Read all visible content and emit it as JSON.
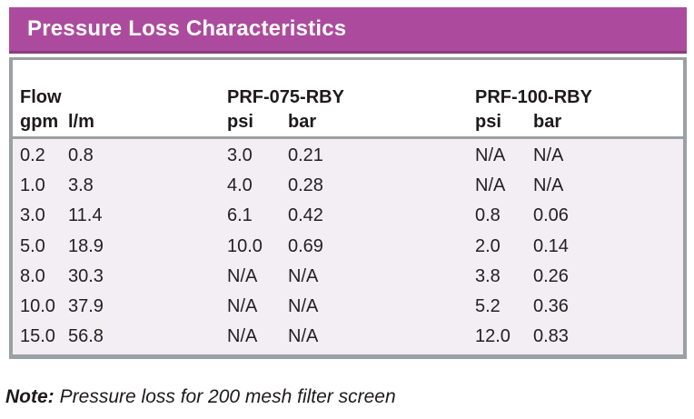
{
  "title": "Pressure Loss Characteristics",
  "table": {
    "col_groups": [
      {
        "label": "Flow"
      },
      {
        "label": "PRF-075-RBY"
      },
      {
        "label": "PRF-100-RBY"
      }
    ],
    "units": [
      "gpm",
      "l/m",
      "psi",
      "bar",
      "psi",
      "bar"
    ],
    "rows": [
      [
        "0.2",
        "0.8",
        "3.0",
        "0.21",
        "N/A",
        "N/A"
      ],
      [
        "1.0",
        "3.8",
        "4.0",
        "0.28",
        "N/A",
        "N/A"
      ],
      [
        "3.0",
        "11.4",
        "6.1",
        "0.42",
        "0.8",
        "0.06"
      ],
      [
        "5.0",
        "18.9",
        "10.0",
        "0.69",
        "2.0",
        "0.14"
      ],
      [
        "8.0",
        "30.3",
        "N/A",
        "N/A",
        "3.8",
        "0.26"
      ],
      [
        "10.0",
        "37.9",
        "N/A",
        "N/A",
        "5.2",
        "0.36"
      ],
      [
        "15.0",
        "56.8",
        "N/A",
        "N/A",
        "12.0",
        "0.83"
      ]
    ]
  },
  "note": {
    "label": "Note:",
    "text": "Pressure loss for 200 mesh filter screen"
  },
  "colors": {
    "title_bar_bg": "#AC4B9D",
    "title_bar_border": "#8A3D7D",
    "table_border": "#9AA0A3",
    "data_area_bg": "#F3EEF4",
    "text": "#232022",
    "title_text": "#ffffff"
  }
}
